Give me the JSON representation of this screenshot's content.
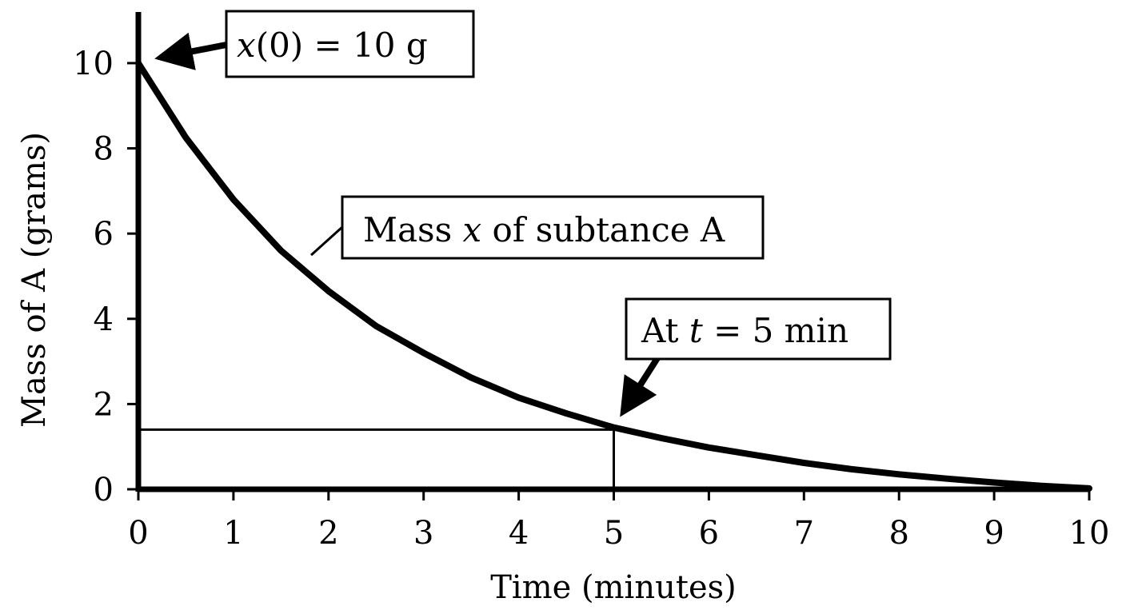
{
  "chart_data": {
    "type": "line",
    "xlabel": "Time (minutes)",
    "ylabel": "Mass of A (grams)",
    "xlim": [
      0,
      10
    ],
    "ylim": [
      0,
      11.2
    ],
    "x_ticks": [
      0,
      1,
      2,
      3,
      4,
      5,
      6,
      7,
      8,
      9,
      10
    ],
    "y_ticks": [
      0,
      2,
      4,
      6,
      8,
      10
    ],
    "grid": false,
    "series": [
      {
        "name": "Mass x of subtance A",
        "x": [
          0,
          0.5,
          1,
          1.5,
          2,
          2.5,
          3,
          3.5,
          4,
          4.5,
          5,
          5.5,
          6,
          6.5,
          7,
          7.5,
          8,
          8.5,
          9,
          9.5,
          10
        ],
        "y": [
          10,
          8.25,
          6.8,
          5.6,
          4.65,
          3.83,
          3.2,
          2.62,
          2.15,
          1.78,
          1.45,
          1.2,
          0.98,
          0.8,
          0.62,
          0.47,
          0.35,
          0.25,
          0.16,
          0.08,
          0.02
        ]
      }
    ],
    "reference_point": {
      "x": 5,
      "y": 1.4
    },
    "annotations": [
      {
        "id": "initial",
        "pre": "",
        "var": "x",
        "post": "(0) = 10 g",
        "target": {
          "x": 0,
          "y": 10
        }
      },
      {
        "id": "series",
        "pre": "Mass ",
        "var": "x",
        "post": " of subtance A",
        "target": {
          "x": 1.8,
          "y": 5.4
        }
      },
      {
        "id": "t5",
        "pre": "At ",
        "var": "t",
        "post": " = 5 min",
        "target": {
          "x": 5,
          "y": 1.6
        }
      }
    ]
  }
}
